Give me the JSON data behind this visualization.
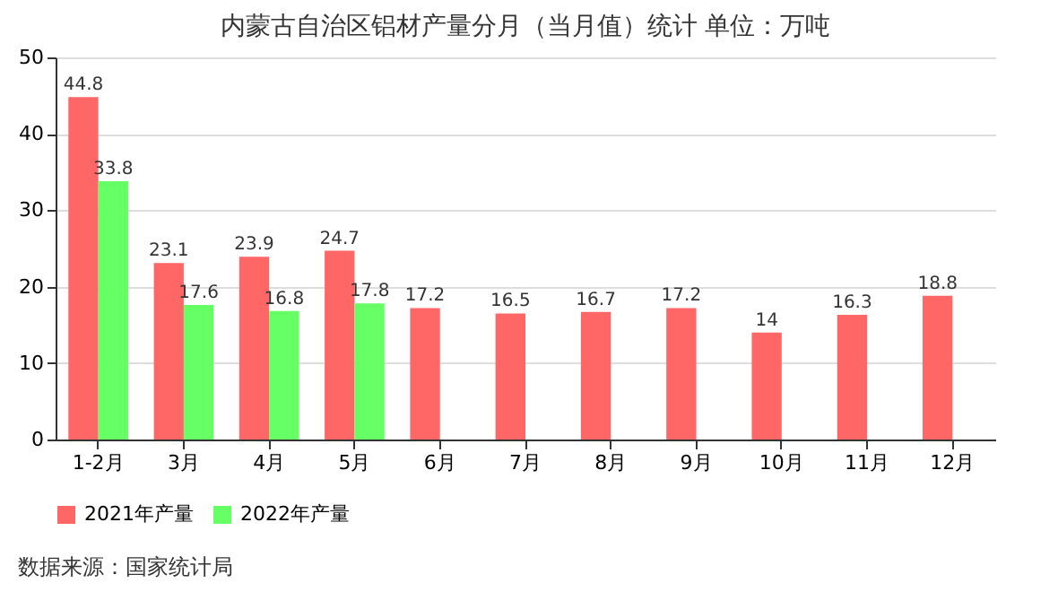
{
  "chart_data": {
    "type": "bar",
    "title": "内蒙古自治区铝材产量分月（当月值）统计  单位：万吨",
    "categories": [
      "1-2月",
      "3月",
      "4月",
      "5月",
      "6月",
      "7月",
      "8月",
      "9月",
      "10月",
      "11月",
      "12月"
    ],
    "series": [
      {
        "name": "2021年产量",
        "color": "#ff6666",
        "values": [
          44.8,
          23.1,
          23.9,
          24.7,
          17.2,
          16.5,
          16.7,
          17.2,
          14,
          16.3,
          18.8
        ]
      },
      {
        "name": "2022年产量",
        "color": "#66ff66",
        "values": [
          33.8,
          17.6,
          16.8,
          17.8,
          null,
          null,
          null,
          null,
          null,
          null,
          null
        ]
      }
    ],
    "ylim": [
      0,
      50
    ],
    "yticks": [
      0,
      10,
      20,
      30,
      40,
      50
    ],
    "grid": "y",
    "legend": "bottom",
    "data_labels": true,
    "annotations": [
      "数据来源：国家统计局"
    ]
  }
}
